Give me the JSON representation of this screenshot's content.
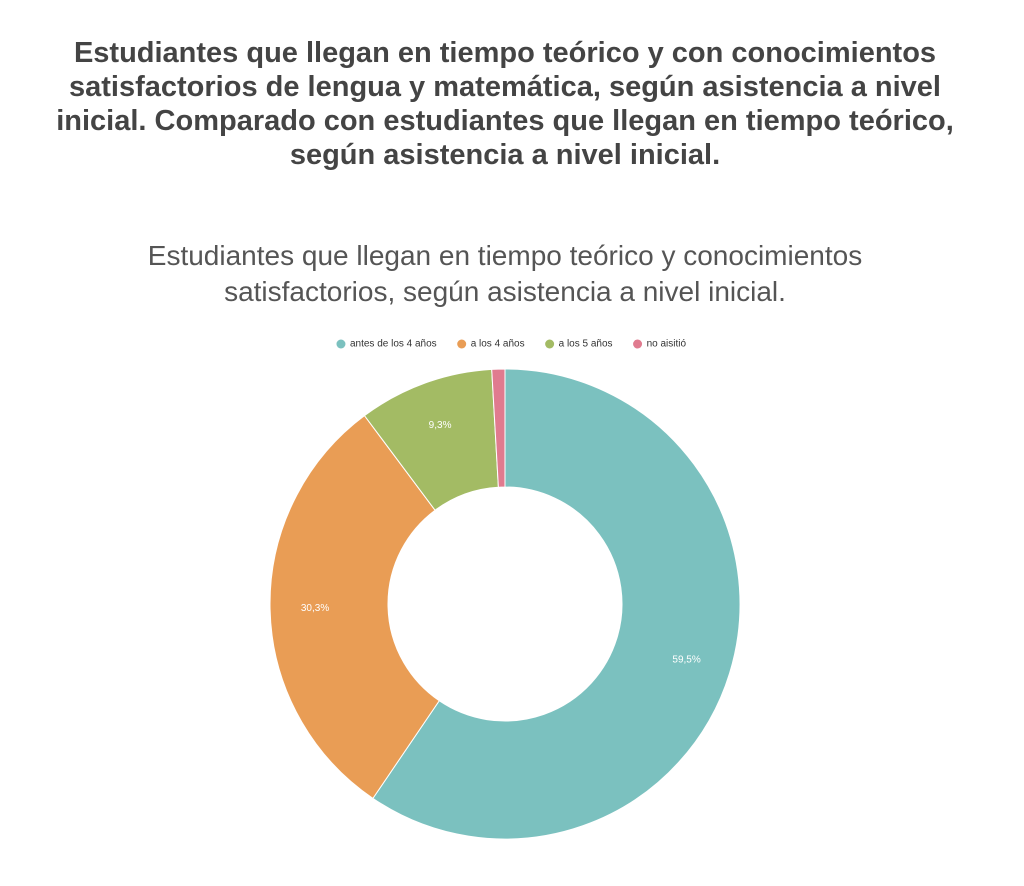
{
  "chart_data": {
    "type": "donut",
    "title": "Estudiantes que llegan en tiempo teórico y con conocimientos satisfactorios de lengua y matemática, según asistencia a nivel inicial. Comparado con estudiantes que llegan en tiempo teórico, según asistencia a nivel inicial.",
    "subtitle": "Estudiantes que llegan en tiempo teórico y conocimientos satisfactorios, según asistencia a nivel inicial.",
    "categories": [
      "antes de los 4 años",
      "a los 4 años",
      "a los 5 años",
      "no aisitió"
    ],
    "values": [
      59.5,
      30.3,
      9.3,
      0.9
    ],
    "value_labels": [
      "59,5%",
      "30,3%",
      "9,3%",
      null
    ],
    "colors": [
      "#7bc1bf",
      "#e99d55",
      "#a3bb64",
      "#e07b8f"
    ],
    "legend": "top"
  }
}
